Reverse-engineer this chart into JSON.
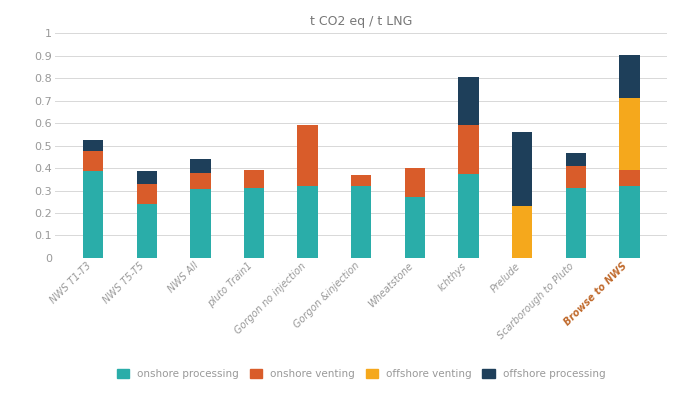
{
  "categories": [
    "NWS T1-T3",
    "NWS T5-T5",
    "NWS All",
    "pluto Train1",
    "Gorgon no injection",
    "Gorgon &injection",
    "Wheatstone",
    "Ichthys",
    "Prelude",
    "Scarborough to Pluto",
    "Browse to NWS"
  ],
  "onshore_processing": [
    0.385,
    0.24,
    0.305,
    0.31,
    0.32,
    0.32,
    0.27,
    0.375,
    0.0,
    0.31,
    0.32
  ],
  "onshore_venting": [
    0.09,
    0.09,
    0.075,
    0.08,
    0.27,
    0.05,
    0.13,
    0.215,
    0.0,
    0.1,
    0.07
  ],
  "offshore_venting": [
    0.0,
    0.0,
    0.0,
    0.0,
    0.0,
    0.0,
    0.0,
    0.0,
    0.23,
    0.0,
    0.32
  ],
  "offshore_processing": [
    0.05,
    0.055,
    0.06,
    0.0,
    0.0,
    0.0,
    0.0,
    0.215,
    0.33,
    0.055,
    0.195
  ],
  "colors": {
    "onshore_processing": "#2aada9",
    "onshore_venting": "#d95c2a",
    "offshore_venting": "#f5a81c",
    "offshore_processing": "#1e3f5a"
  },
  "title": "t CO2 eq / t LNG",
  "ylim": [
    0,
    1.0
  ],
  "yticks": [
    0,
    0.1,
    0.2,
    0.3,
    0.4,
    0.5,
    0.6,
    0.7,
    0.8,
    0.9,
    1
  ],
  "legend_labels": [
    "onshore processing",
    "onshore venting",
    "offshore venting",
    "offshore processing"
  ],
  "background_color": "#ffffff",
  "grid_color": "#d8d8d8",
  "title_color": "#777777",
  "tick_color": "#999999",
  "label_color": "#c0692b",
  "legend_text_color": "#999999"
}
